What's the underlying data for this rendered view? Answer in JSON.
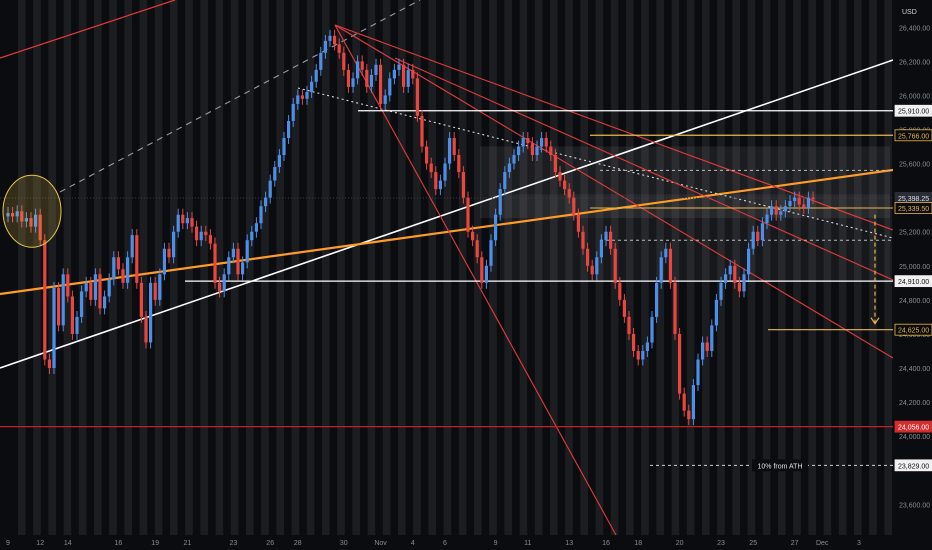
{
  "chart_data": {
    "type": "candlestick",
    "currency": "USD",
    "ylim": [
      23420,
      26560
    ],
    "y_ticks": [
      26400,
      26200,
      26000,
      25800,
      25600,
      25400,
      25200,
      25000,
      24800,
      24600,
      24400,
      24200,
      24000,
      23600
    ],
    "x_ticks": [
      {
        "label": "9",
        "i": 0
      },
      {
        "label": "12",
        "i": 7
      },
      {
        "label": "14",
        "i": 13
      },
      {
        "label": "16",
        "i": 24
      },
      {
        "label": "19",
        "i": 32
      },
      {
        "label": "21",
        "i": 39
      },
      {
        "label": "23",
        "i": 49
      },
      {
        "label": "26",
        "i": 57
      },
      {
        "label": "28",
        "i": 63
      },
      {
        "label": "30",
        "i": 73
      },
      {
        "label": "Nov",
        "i": 81
      },
      {
        "label": "4",
        "i": 88
      },
      {
        "label": "6",
        "i": 95
      },
      {
        "label": "9",
        "i": 106
      },
      {
        "label": "11",
        "i": 113
      },
      {
        "label": "13",
        "i": 122
      },
      {
        "label": "16",
        "i": 130
      },
      {
        "label": "18",
        "i": 137
      },
      {
        "label": "20",
        "i": 146
      },
      {
        "label": "23",
        "i": 155
      },
      {
        "label": "25",
        "i": 162
      },
      {
        "label": "27",
        "i": 171
      },
      {
        "label": "Dec",
        "i": 177
      },
      {
        "label": "3",
        "i": 185
      }
    ],
    "closes": [
      25310,
      25290,
      25320,
      25260,
      25280,
      25230,
      25300,
      25150,
      24450,
      24400,
      24870,
      24650,
      24950,
      24820,
      24600,
      24700,
      24850,
      24900,
      24800,
      24950,
      24750,
      24820,
      24920,
      25050,
      24980,
      24900,
      25050,
      25180,
      24900,
      24700,
      24550,
      24900,
      24800,
      24950,
      25100,
      25050,
      25200,
      25300,
      25250,
      25280,
      25230,
      25150,
      25200,
      25180,
      25130,
      24900,
      24850,
      24950,
      25050,
      25100,
      24950,
      25020,
      25150,
      25200,
      25250,
      25350,
      25400,
      25500,
      25580,
      25650,
      25750,
      25850,
      25950,
      26000,
      25980,
      26020,
      26080,
      26150,
      26250,
      26320,
      26350,
      26300,
      26250,
      26150,
      26050,
      26100,
      26200,
      26150,
      26050,
      26120,
      26180,
      25950,
      26000,
      26100,
      26150,
      26180,
      26050,
      26150,
      26100,
      25880,
      25700,
      25600,
      25550,
      25450,
      25500,
      25600,
      25750,
      25650,
      25550,
      25400,
      25200,
      25150,
      25050,
      24900,
      25000,
      25150,
      25300,
      25450,
      25550,
      25600,
      25650,
      25700,
      25750,
      25720,
      25650,
      25700,
      25750,
      25700,
      25650,
      25550,
      25500,
      25450,
      25400,
      25300,
      25200,
      25100,
      25000,
      24950,
      25050,
      25150,
      25200,
      25100,
      24900,
      24800,
      24700,
      24600,
      24500,
      24450,
      24500,
      24550,
      24700,
      24900,
      25050,
      25100,
      24900,
      24600,
      24250,
      24150,
      24100,
      24300,
      24450,
      24550,
      24500,
      24650,
      24800,
      24900,
      24950,
      25000,
      24900,
      24850,
      24950,
      25100,
      25200,
      25150,
      25250,
      25300,
      25350,
      25300,
      25320,
      25350,
      25380,
      25400,
      25360,
      25340,
      25400,
      25398
    ]
  },
  "price_labels": [
    {
      "value": 25910,
      "text": "25,910.00",
      "style": "white"
    },
    {
      "value": 25766,
      "text": "25,766.00",
      "style": "gold"
    },
    {
      "value": 25398.25,
      "text": "25,398.25",
      "style": "dark"
    },
    {
      "value": 25339.5,
      "text": "25,339.50",
      "style": "gold"
    },
    {
      "value": 24910,
      "text": "24,910.00",
      "style": "white"
    },
    {
      "value": 24625,
      "text": "24,625.00",
      "style": "gold"
    },
    {
      "value": 24056,
      "text": "24,056.00",
      "style": "red"
    },
    {
      "value": 23829,
      "text": "23,829.00",
      "style": "white"
    }
  ],
  "annotation": "10% from ATH",
  "colors": {
    "background": "#0b0c10",
    "session_stripe": "#2b2c30",
    "bull": "#4d8ee6",
    "bear": "#e8463f",
    "trend_red": "#e33b3b",
    "trend_orange": "#ff9c26",
    "trend_white": "#ffffff",
    "level_gold": "#e8b84a",
    "red_level": "#c02222"
  }
}
